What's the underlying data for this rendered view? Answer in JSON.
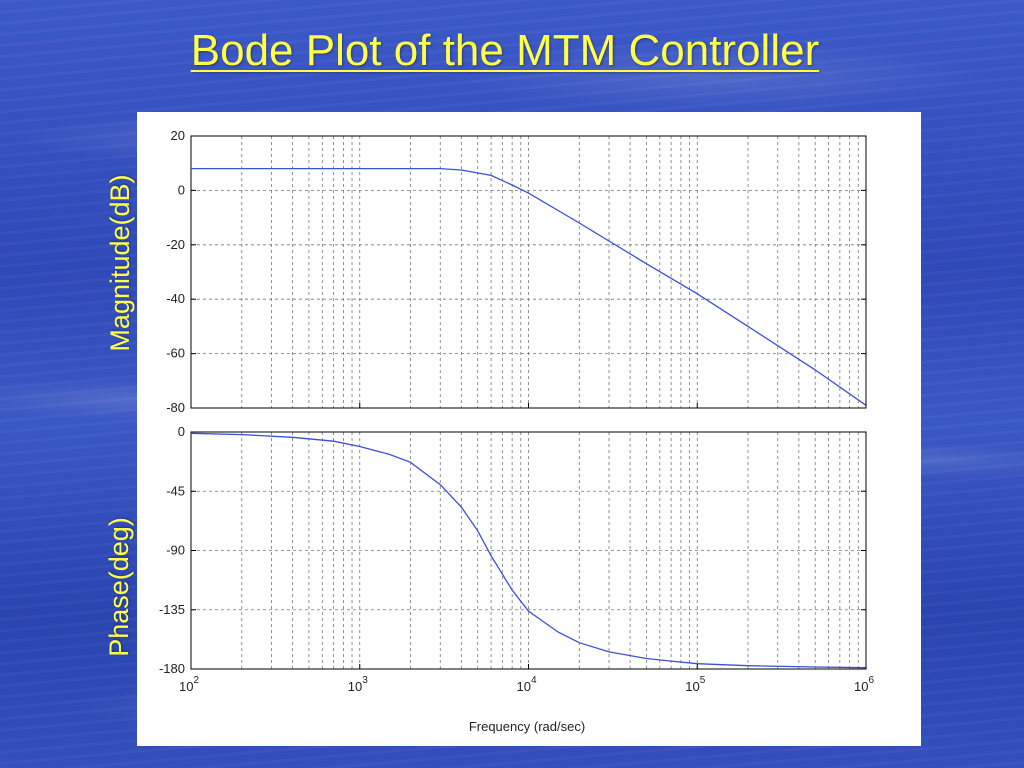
{
  "slide": {
    "title": "Bode Plot of the MTM Controller",
    "title_color": "#ffff4a",
    "background_color": "#3552c0"
  },
  "chart_data": {
    "type": "line",
    "xscale": "log",
    "xlim": [
      100,
      1000000
    ],
    "xlabel": "Frequency  (rad/sec)",
    "xticks": [
      {
        "value": 100,
        "base": "10",
        "exp": "2"
      },
      {
        "value": 1000,
        "base": "10",
        "exp": "3"
      },
      {
        "value": 10000,
        "base": "10",
        "exp": "4"
      },
      {
        "value": 100000,
        "base": "10",
        "exp": "5"
      },
      {
        "value": 1000000,
        "base": "10",
        "exp": "6"
      }
    ],
    "grid": true,
    "line_color": "#3a50d8",
    "subplots": [
      {
        "id": "magnitude",
        "ylabel": "Magnitude(dB)",
        "ylim": [
          -80,
          20
        ],
        "yticks": [
          20,
          0,
          -20,
          -40,
          -60,
          -80
        ],
        "x": [
          100,
          1000,
          3000,
          4000,
          6000,
          8000,
          10000,
          20000,
          50000,
          100000,
          200000,
          500000,
          1000000
        ],
        "y": [
          8,
          8,
          8,
          7.5,
          5.5,
          2,
          -1,
          -12,
          -27,
          -38,
          -50,
          -66,
          -79
        ]
      },
      {
        "id": "phase",
        "ylabel": "Phase(deg)",
        "ylim": [
          -180,
          0
        ],
        "yticks": [
          0,
          -45,
          -90,
          -135,
          -180
        ],
        "x": [
          100,
          200,
          400,
          700,
          1000,
          1500,
          2000,
          3000,
          4000,
          5000,
          6000,
          7000,
          8000,
          10000,
          15000,
          20000,
          30000,
          50000,
          70000,
          100000,
          200000,
          500000,
          1000000
        ],
        "y": [
          -1,
          -2,
          -4,
          -7,
          -11,
          -17,
          -23,
          -40,
          -57,
          -75,
          -94,
          -108,
          -120,
          -136,
          -152,
          -160,
          -167,
          -172,
          -174,
          -176,
          -177.5,
          -178.5,
          -179
        ]
      }
    ]
  }
}
